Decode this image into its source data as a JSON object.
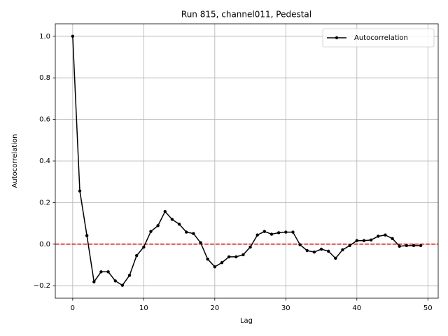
{
  "chart_data": {
    "type": "line",
    "title": "Run 815, channel011, Pedestal",
    "xlabel": "Lag",
    "ylabel": "Autocorrelation",
    "x": [
      0,
      1,
      2,
      3,
      4,
      5,
      6,
      7,
      8,
      9,
      10,
      11,
      12,
      13,
      14,
      15,
      16,
      17,
      18,
      19,
      20,
      21,
      22,
      23,
      24,
      25,
      26,
      27,
      28,
      29,
      30,
      31,
      32,
      33,
      34,
      35,
      36,
      37,
      38,
      39,
      40,
      41,
      42,
      43,
      44,
      45,
      46,
      47,
      48,
      49
    ],
    "series": [
      {
        "name": "Autocorrelation",
        "color": "#000000",
        "values": [
          1.0,
          0.256,
          0.041,
          -0.181,
          -0.133,
          -0.133,
          -0.177,
          -0.198,
          -0.15,
          -0.055,
          -0.014,
          0.061,
          0.089,
          0.157,
          0.119,
          0.096,
          0.058,
          0.051,
          0.007,
          -0.072,
          -0.109,
          -0.089,
          -0.061,
          -0.061,
          -0.051,
          -0.014,
          0.044,
          0.061,
          0.048,
          0.055,
          0.058,
          0.058,
          -0.003,
          -0.031,
          -0.038,
          -0.024,
          -0.034,
          -0.068,
          -0.027,
          -0.007,
          0.017,
          0.017,
          0.02,
          0.038,
          0.044,
          0.027,
          -0.01,
          -0.007,
          -0.007,
          -0.007
        ]
      }
    ],
    "reference_line": {
      "y": 0,
      "color": "#e00000",
      "style": "dashed"
    },
    "xlim": [
      -2.45,
      51.45
    ],
    "xticks": [
      0,
      10,
      20,
      30,
      40,
      50
    ],
    "ylim": [
      -0.26,
      1.06
    ],
    "yticks": [
      {
        "value": -0.2,
        "label": "−0.2"
      },
      {
        "value": 0,
        "label": "0.0"
      },
      {
        "value": 0.2,
        "label": "0.2"
      },
      {
        "value": 0.4,
        "label": "0.4"
      },
      {
        "value": 0.6,
        "label": "0.6"
      },
      {
        "value": 0.8,
        "label": "0.8"
      },
      {
        "value": 1.0,
        "label": "1.0"
      }
    ],
    "grid": true,
    "legend": "upper-right"
  }
}
